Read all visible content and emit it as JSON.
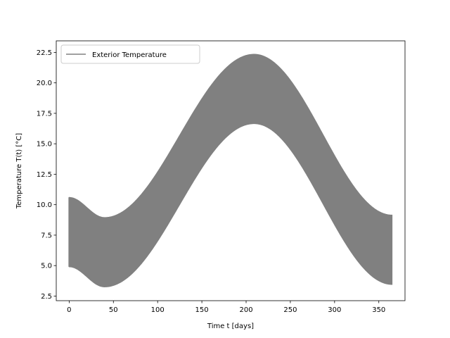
{
  "chart_data": {
    "type": "line",
    "title": "",
    "xlabel": "Time t [days]",
    "ylabel": "Temperature T(t) [°C]",
    "xlim": [
      -14.6,
      379.6
    ],
    "ylim": [
      2.12,
      23.45
    ],
    "xticks": [
      0,
      50,
      100,
      150,
      200,
      250,
      300,
      350
    ],
    "xtick_labels": [
      "0",
      "50",
      "100",
      "150",
      "200",
      "250",
      "300",
      "350"
    ],
    "yticks": [
      2.5,
      5.0,
      7.5,
      10.0,
      12.5,
      15.0,
      17.5,
      20.0,
      22.5
    ],
    "ytick_labels": [
      "2.5",
      "5.0",
      "7.5",
      "10.0",
      "12.5",
      "15.0",
      "17.5",
      "20.0",
      "22.5"
    ],
    "grid": false,
    "legend": {
      "position": "top-left",
      "entries": [
        "Exterior Temperature"
      ]
    },
    "series": [
      {
        "name": "Exterior Temperature",
        "color": "#808080",
        "seasonal_mean_points": {
          "x": [
            0,
            40,
            209,
            365
          ],
          "y": [
            7.75,
            6.1,
            19.5,
            6.3
          ]
        },
        "daily_amplitude": 2.85,
        "period_days": 1,
        "x_range": [
          0,
          365
        ]
      }
    ]
  }
}
